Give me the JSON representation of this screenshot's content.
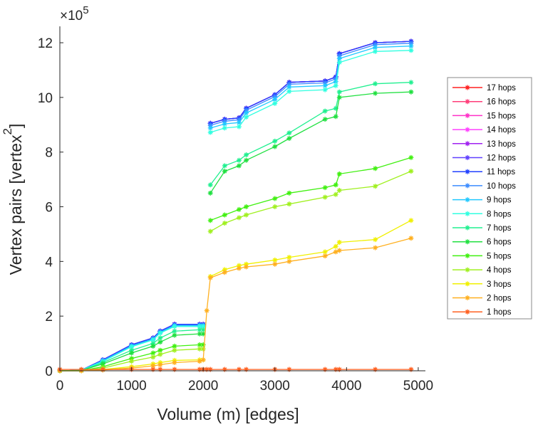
{
  "chart_data": {
    "type": "line",
    "title": "",
    "xlabel": "Volume (m) [edges]",
    "ylabel_main": "Vertex pairs [vertex",
    "ylabel_sup": "2",
    "ylabel_end": "]",
    "y_multiplier_base": "×10",
    "y_multiplier_exp": "5",
    "xlim": [
      0,
      5100
    ],
    "ylim": [
      0,
      12.6
    ],
    "xticks": [
      0,
      1000,
      2000,
      3000,
      4000,
      5000
    ],
    "yticks": [
      0,
      2,
      4,
      6,
      8,
      10,
      12
    ],
    "grid": false,
    "legend_position": "right-outside",
    "x": [
      0,
      300,
      600,
      1000,
      1300,
      1400,
      1600,
      1950,
      2000,
      2050,
      2100,
      2300,
      2500,
      2600,
      3000,
      3200,
      3700,
      3850,
      3900,
      4400,
      4900
    ],
    "series": [
      {
        "name": "17 hops",
        "color": "#ff2020",
        "values": [
          0,
          0.02,
          0.4,
          0.95,
          1.2,
          1.45,
          1.7,
          1.7,
          1.7,
          null,
          9.05,
          9.2,
          9.25,
          9.6,
          10.1,
          10.55,
          10.6,
          10.75,
          11.6,
          12.0,
          12.05
        ]
      },
      {
        "name": "16 hops",
        "color": "#ff3c78",
        "values": [
          0,
          0.02,
          0.4,
          0.95,
          1.2,
          1.45,
          1.7,
          1.7,
          1.7,
          null,
          9.05,
          9.2,
          9.25,
          9.6,
          10.1,
          10.55,
          10.6,
          10.75,
          11.6,
          12.0,
          12.05
        ]
      },
      {
        "name": "15 hops",
        "color": "#ff30c8",
        "values": [
          0,
          0.02,
          0.4,
          0.95,
          1.2,
          1.45,
          1.7,
          1.7,
          1.7,
          null,
          9.05,
          9.2,
          9.25,
          9.6,
          10.1,
          10.55,
          10.6,
          10.75,
          11.6,
          12.0,
          12.05
        ]
      },
      {
        "name": "14 hops",
        "color": "#ff40ff",
        "values": [
          0,
          0.02,
          0.4,
          0.95,
          1.2,
          1.45,
          1.7,
          1.7,
          1.7,
          null,
          9.05,
          9.2,
          9.25,
          9.6,
          10.1,
          10.55,
          10.6,
          10.75,
          11.6,
          12.0,
          12.05
        ]
      },
      {
        "name": "13 hops",
        "color": "#a020f0",
        "values": [
          0,
          0.02,
          0.4,
          0.95,
          1.2,
          1.45,
          1.7,
          1.7,
          1.7,
          null,
          9.05,
          9.2,
          9.25,
          9.6,
          10.1,
          10.55,
          10.6,
          10.75,
          11.6,
          12.0,
          12.05
        ]
      },
      {
        "name": "12 hops",
        "color": "#6040ff",
        "values": [
          0,
          0.02,
          0.4,
          0.95,
          1.2,
          1.45,
          1.7,
          1.7,
          1.7,
          null,
          9.05,
          9.2,
          9.25,
          9.6,
          10.1,
          10.55,
          10.6,
          10.75,
          11.6,
          12.0,
          12.05
        ]
      },
      {
        "name": "11 hops",
        "color": "#2040ff",
        "values": [
          0,
          0.02,
          0.4,
          0.95,
          1.2,
          1.45,
          1.7,
          1.7,
          1.7,
          null,
          9.05,
          9.2,
          9.25,
          9.6,
          10.1,
          10.55,
          10.6,
          10.75,
          11.6,
          12.0,
          12.05
        ]
      },
      {
        "name": "10 hops",
        "color": "#3c8cff",
        "values": [
          0,
          0.02,
          0.38,
          0.92,
          1.17,
          1.42,
          1.67,
          1.67,
          1.67,
          null,
          8.98,
          9.13,
          9.18,
          9.53,
          10.03,
          10.48,
          10.53,
          10.68,
          11.52,
          11.93,
          11.98
        ]
      },
      {
        "name": "9 hops",
        "color": "#20c8ff",
        "values": [
          0,
          0.02,
          0.36,
          0.9,
          1.15,
          1.4,
          1.65,
          1.65,
          1.65,
          null,
          8.88,
          9.03,
          9.08,
          9.43,
          9.93,
          10.38,
          10.43,
          10.58,
          11.42,
          11.83,
          11.88
        ]
      },
      {
        "name": "8 hops",
        "color": "#30ffe0",
        "values": [
          0,
          0.02,
          0.34,
          0.88,
          1.13,
          1.38,
          1.62,
          1.62,
          1.62,
          null,
          8.72,
          8.88,
          8.93,
          9.28,
          9.78,
          10.22,
          10.28,
          10.43,
          11.28,
          11.68,
          11.72
        ]
      },
      {
        "name": "7 hops",
        "color": "#20f090",
        "values": [
          0,
          0.01,
          0.3,
          0.75,
          1.0,
          1.2,
          1.45,
          1.5,
          1.5,
          null,
          6.8,
          7.5,
          7.7,
          7.9,
          8.4,
          8.7,
          9.5,
          9.6,
          10.2,
          10.5,
          10.55
        ]
      },
      {
        "name": "6 hops",
        "color": "#20e040",
        "values": [
          0,
          0.01,
          0.25,
          0.65,
          0.9,
          1.05,
          1.3,
          1.35,
          1.35,
          null,
          6.5,
          7.3,
          7.5,
          7.7,
          8.2,
          8.5,
          9.2,
          9.3,
          10.0,
          10.15,
          10.2
        ]
      },
      {
        "name": "5 hops",
        "color": "#40f010",
        "values": [
          0,
          0,
          0.15,
          0.45,
          0.65,
          0.75,
          0.9,
          0.95,
          0.95,
          null,
          5.5,
          5.7,
          5.9,
          6.0,
          6.3,
          6.5,
          6.7,
          6.8,
          7.2,
          7.4,
          7.8
        ]
      },
      {
        "name": "4 hops",
        "color": "#a0f020",
        "values": [
          0,
          0,
          0.1,
          0.35,
          0.5,
          0.6,
          0.75,
          0.8,
          0.8,
          null,
          5.1,
          5.4,
          5.6,
          5.7,
          6.0,
          6.1,
          6.35,
          6.45,
          6.6,
          6.75,
          7.3
        ]
      },
      {
        "name": "3 hops",
        "color": "#f0f000",
        "values": [
          0,
          0,
          0.05,
          0.15,
          0.25,
          0.3,
          0.38,
          0.4,
          0.4,
          null,
          3.45,
          3.7,
          3.85,
          3.9,
          4.05,
          4.15,
          4.35,
          4.55,
          4.7,
          4.8,
          5.5
        ]
      },
      {
        "name": "2 hops",
        "color": "#ffb020",
        "values": [
          0,
          0,
          0.03,
          0.1,
          0.18,
          0.22,
          0.3,
          0.35,
          0.4,
          2.2,
          3.4,
          3.6,
          3.75,
          3.8,
          3.9,
          4.0,
          4.2,
          4.35,
          4.4,
          4.5,
          4.85
        ]
      },
      {
        "name": "1 hops",
        "color": "#ff6020",
        "values": [
          0.05,
          0.05,
          0.05,
          0.05,
          0.05,
          0.05,
          0.05,
          0.05,
          0.05,
          0.05,
          0.05,
          0.05,
          0.05,
          0.05,
          0.05,
          0.05,
          0.05,
          0.05,
          0.05,
          0.05,
          0.05
        ]
      }
    ]
  }
}
